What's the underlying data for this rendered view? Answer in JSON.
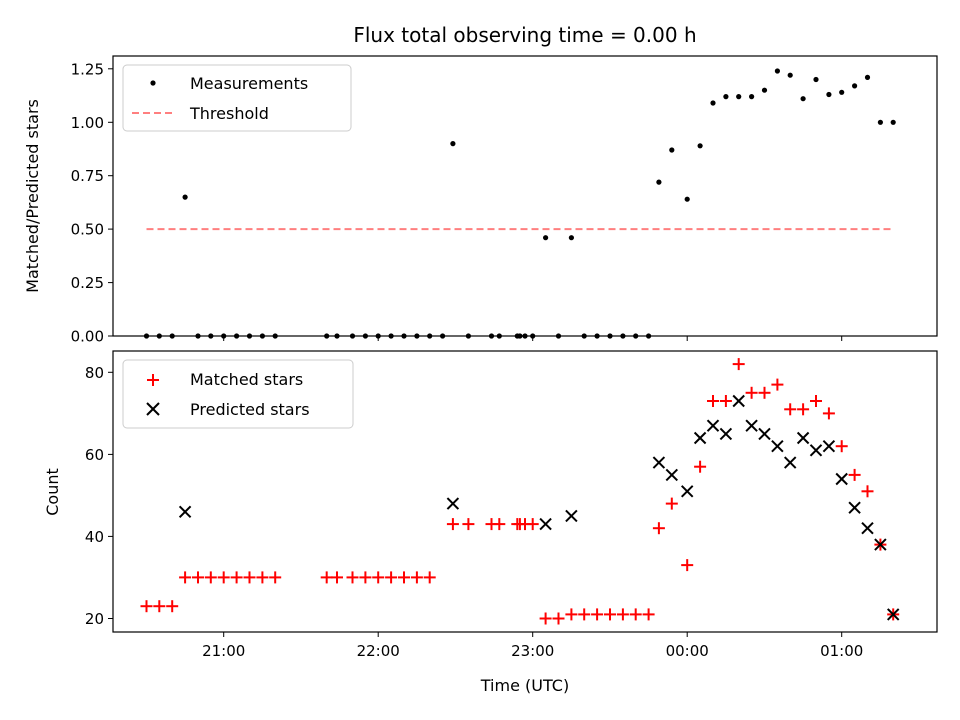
{
  "chart_data": [
    {
      "type": "scatter",
      "title": "Flux total observing time = 0.00 h",
      "xlabel": "",
      "ylabel": "Matched/Predicted stars",
      "xlim": [
        "20:17",
        "01:37"
      ],
      "ylim": [
        0.0,
        1.31
      ],
      "y_ticks": [
        "0.00",
        "0.25",
        "0.50",
        "0.75",
        "1.00",
        "1.25"
      ],
      "grid": false,
      "legend": "top-left",
      "series": [
        {
          "name": "Measurements",
          "marker": "dot",
          "color": "#000000",
          "points": [
            [
              "20:30",
              0
            ],
            [
              "20:35",
              0
            ],
            [
              "20:40",
              0
            ],
            [
              "20:45",
              0.65
            ],
            [
              "20:50",
              0
            ],
            [
              "20:55",
              0
            ],
            [
              "21:00",
              0
            ],
            [
              "21:05",
              0
            ],
            [
              "21:10",
              0
            ],
            [
              "21:15",
              0
            ],
            [
              "21:20",
              0
            ],
            [
              "21:40",
              0
            ],
            [
              "21:44",
              0
            ],
            [
              "21:50",
              0
            ],
            [
              "21:55",
              0
            ],
            [
              "22:00",
              0
            ],
            [
              "22:05",
              0
            ],
            [
              "22:10",
              0
            ],
            [
              "22:15",
              0
            ],
            [
              "22:20",
              0
            ],
            [
              "22:25",
              0
            ],
            [
              "22:29",
              0.9
            ],
            [
              "22:35",
              0
            ],
            [
              "22:44",
              0
            ],
            [
              "22:47",
              0
            ],
            [
              "22:54",
              0
            ],
            [
              "22:55",
              0
            ],
            [
              "22:57",
              0
            ],
            [
              "23:00",
              0
            ],
            [
              "23:05",
              0.46
            ],
            [
              "23:10",
              0
            ],
            [
              "23:15",
              0.46
            ],
            [
              "23:20",
              0
            ],
            [
              "23:25",
              0
            ],
            [
              "23:30",
              0
            ],
            [
              "23:35",
              0
            ],
            [
              "23:40",
              0
            ],
            [
              "23:45",
              0
            ],
            [
              "23:49",
              0.72
            ],
            [
              "23:54",
              0.87
            ],
            [
              "00:00",
              0.64
            ],
            [
              "00:05",
              0.89
            ],
            [
              "00:10",
              1.09
            ],
            [
              "00:15",
              1.12
            ],
            [
              "00:20",
              1.12
            ],
            [
              "00:25",
              1.12
            ],
            [
              "00:30",
              1.15
            ],
            [
              "00:35",
              1.24
            ],
            [
              "00:40",
              1.22
            ],
            [
              "00:45",
              1.11
            ],
            [
              "00:50",
              1.2
            ],
            [
              "00:55",
              1.13
            ],
            [
              "01:00",
              1.14
            ],
            [
              "01:05",
              1.17
            ],
            [
              "01:10",
              1.21
            ],
            [
              "01:15",
              1.0
            ],
            [
              "01:20",
              1.0
            ]
          ]
        },
        {
          "name": "Threshold",
          "marker": "dashed-line",
          "color": "#ff7f7f",
          "points": [
            [
              "20:30",
              0.5
            ],
            [
              "01:20",
              0.5
            ]
          ]
        }
      ]
    },
    {
      "type": "scatter",
      "title": "",
      "xlabel": "Time (UTC)",
      "ylabel": "Count",
      "xlim": [
        "20:17",
        "01:37"
      ],
      "ylim": [
        16.7,
        85.2
      ],
      "y_ticks": [
        "20",
        "40",
        "60",
        "80"
      ],
      "x_ticks": [
        "21:00",
        "22:00",
        "23:00",
        "00:00",
        "01:00"
      ],
      "grid": false,
      "legend": "top-left",
      "series": [
        {
          "name": "Matched stars",
          "marker": "plus",
          "color": "#ff0000",
          "points": [
            [
              "20:30",
              23
            ],
            [
              "20:35",
              23
            ],
            [
              "20:40",
              23
            ],
            [
              "20:45",
              30
            ],
            [
              "20:50",
              30
            ],
            [
              "20:55",
              30
            ],
            [
              "21:00",
              30
            ],
            [
              "21:05",
              30
            ],
            [
              "21:10",
              30
            ],
            [
              "21:15",
              30
            ],
            [
              "21:20",
              30
            ],
            [
              "21:40",
              30
            ],
            [
              "21:44",
              30
            ],
            [
              "21:50",
              30
            ],
            [
              "21:55",
              30
            ],
            [
              "22:00",
              30
            ],
            [
              "22:05",
              30
            ],
            [
              "22:10",
              30
            ],
            [
              "22:15",
              30
            ],
            [
              "22:20",
              30
            ],
            [
              "22:29",
              43
            ],
            [
              "22:35",
              43
            ],
            [
              "22:44",
              43
            ],
            [
              "22:47",
              43
            ],
            [
              "22:54",
              43
            ],
            [
              "22:55",
              43
            ],
            [
              "22:57",
              43
            ],
            [
              "23:00",
              43
            ],
            [
              "23:05",
              20
            ],
            [
              "23:10",
              20
            ],
            [
              "23:15",
              21
            ],
            [
              "23:20",
              21
            ],
            [
              "23:25",
              21
            ],
            [
              "23:30",
              21
            ],
            [
              "23:35",
              21
            ],
            [
              "23:40",
              21
            ],
            [
              "23:45",
              21
            ],
            [
              "23:49",
              42
            ],
            [
              "23:54",
              48
            ],
            [
              "00:00",
              33
            ],
            [
              "00:05",
              57
            ],
            [
              "00:10",
              73
            ],
            [
              "00:15",
              73
            ],
            [
              "00:20",
              82
            ],
            [
              "00:25",
              75
            ],
            [
              "00:30",
              75
            ],
            [
              "00:35",
              77
            ],
            [
              "00:40",
              71
            ],
            [
              "00:45",
              71
            ],
            [
              "00:50",
              73
            ],
            [
              "00:55",
              70
            ],
            [
              "01:00",
              62
            ],
            [
              "01:05",
              55
            ],
            [
              "01:10",
              51
            ],
            [
              "01:15",
              38
            ],
            [
              "01:20",
              21
            ]
          ]
        },
        {
          "name": "Predicted stars",
          "marker": "x",
          "color": "#000000",
          "points": [
            [
              "20:45",
              46
            ],
            [
              "22:29",
              48
            ],
            [
              "23:05",
              43
            ],
            [
              "23:15",
              45
            ],
            [
              "23:49",
              58
            ],
            [
              "23:54",
              55
            ],
            [
              "00:00",
              51
            ],
            [
              "00:05",
              64
            ],
            [
              "00:10",
              67
            ],
            [
              "00:15",
              65
            ],
            [
              "00:20",
              73
            ],
            [
              "00:25",
              67
            ],
            [
              "00:30",
              65
            ],
            [
              "00:35",
              62
            ],
            [
              "00:40",
              58
            ],
            [
              "00:45",
              64
            ],
            [
              "00:50",
              61
            ],
            [
              "00:55",
              62
            ],
            [
              "01:00",
              54
            ],
            [
              "01:05",
              47
            ],
            [
              "01:10",
              42
            ],
            [
              "01:15",
              38
            ],
            [
              "01:20",
              21
            ]
          ]
        }
      ]
    }
  ]
}
